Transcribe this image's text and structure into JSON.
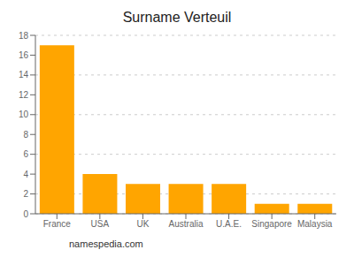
{
  "chart_data": {
    "type": "bar",
    "title": "Surname Verteuil",
    "categories": [
      "France",
      "USA",
      "UK",
      "Australia",
      "U.A.E.",
      "Singapore",
      "Malaysia"
    ],
    "values": [
      17,
      4,
      3,
      3,
      3,
      1,
      1
    ],
    "color": "#FFA500",
    "ylim": [
      0,
      18
    ],
    "yticks": [
      0,
      2,
      4,
      6,
      8,
      10,
      12,
      14,
      16,
      18
    ],
    "grid": true,
    "annotations": [
      "namespedia.com"
    ]
  }
}
